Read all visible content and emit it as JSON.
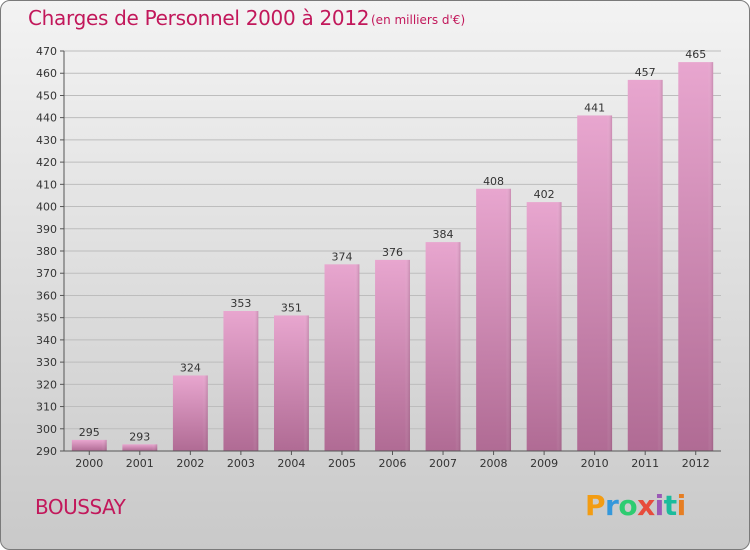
{
  "chart_data": {
    "type": "bar",
    "title": "Charges de Personnel 2000 à 2012",
    "subtitle": "(en milliers d'€)",
    "categories": [
      "2000",
      "2001",
      "2002",
      "2003",
      "2004",
      "2005",
      "2006",
      "2007",
      "2008",
      "2009",
      "2010",
      "2011",
      "2012"
    ],
    "values": [
      295,
      293,
      324,
      353,
      351,
      374,
      376,
      384,
      408,
      402,
      441,
      457,
      465
    ],
    "xlabel": "",
    "ylabel": "",
    "ylim": [
      290,
      470
    ],
    "yticks": [
      290,
      300,
      310,
      320,
      330,
      340,
      350,
      360,
      370,
      380,
      390,
      400,
      410,
      420,
      430,
      440,
      450,
      460,
      470
    ],
    "grid": true,
    "bar_color": "#d98ab5"
  },
  "footer": {
    "commune": "BOUSSAY",
    "logo_letters": [
      "P",
      "r",
      "o",
      "x",
      "i",
      "t",
      "i"
    ]
  }
}
